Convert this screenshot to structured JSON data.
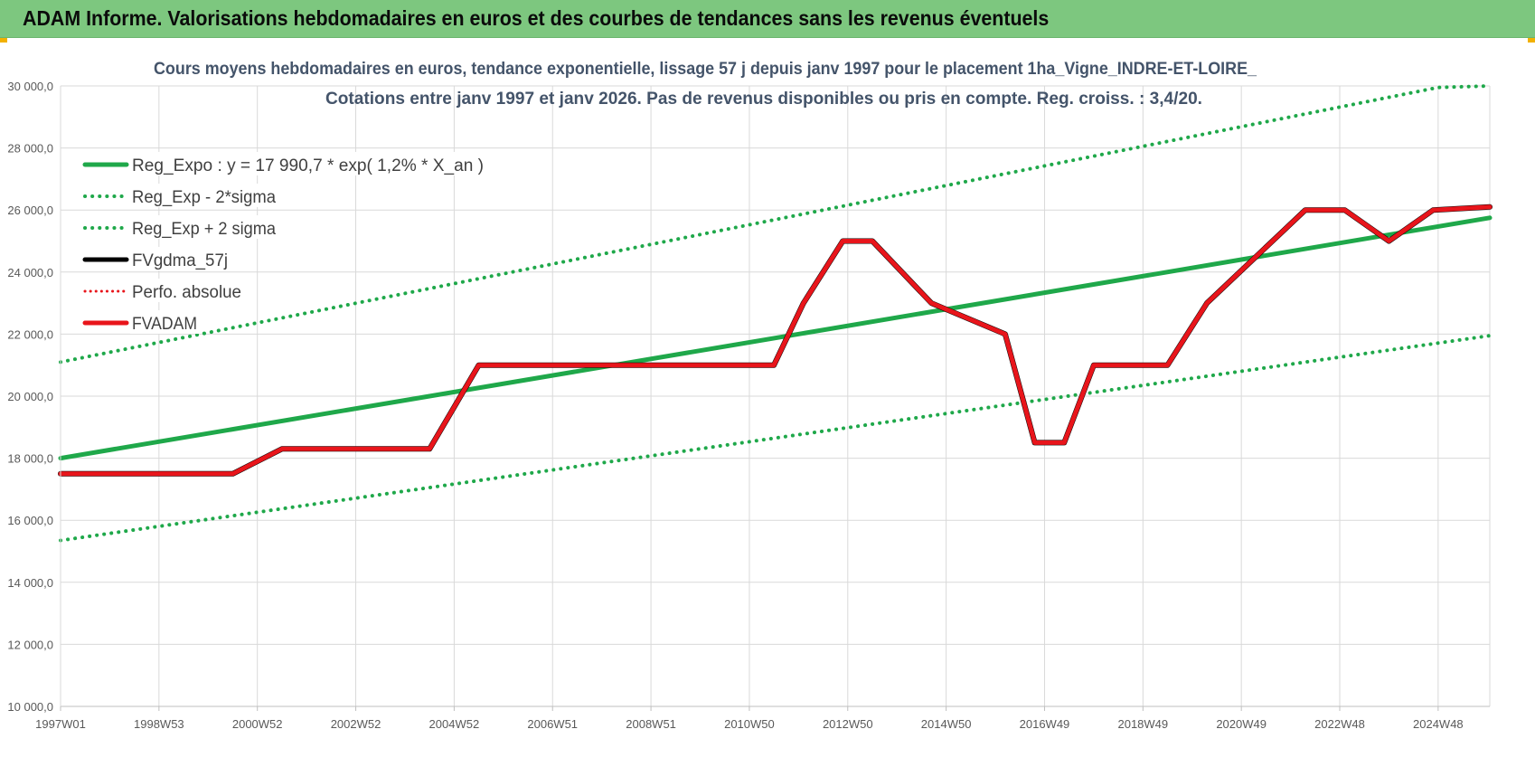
{
  "header": {
    "title": "ADAM Informe. Valorisations hebdomadaires en euros et des courbes de tendances sans les revenus éventuels"
  },
  "chart_data": {
    "type": "line",
    "title_lines": [
      "Cours moyens hebdomadaires en euros, tendance exponentielle, lissage 57 j depuis janv 1997 pour le placement 1ha_Vigne_INDRE-ET-LOIRE_",
      "Cotations entre janv 1997 et janv 2026. Pas de revenus disponibles ou pris en compte. Reg. croiss. : 3,4/20."
    ],
    "xlabel": "",
    "ylabel": "",
    "ylim": [
      10000,
      30000
    ],
    "xlim": [
      1997.0,
      2026.05
    ],
    "y_ticks": [
      "10 000,0",
      "12 000,0",
      "14 000,0",
      "16 000,0",
      "18 000,0",
      "20 000,0",
      "22 000,0",
      "24 000,0",
      "26 000,0",
      "28 000,0",
      "30 000,0"
    ],
    "y_tick_values": [
      10000,
      12000,
      14000,
      16000,
      18000,
      20000,
      22000,
      24000,
      26000,
      28000,
      30000
    ],
    "x_ticks": [
      "1997W01",
      "1998W53",
      "2000W52",
      "2002W52",
      "2004W52",
      "2006W51",
      "2008W51",
      "2010W50",
      "2012W50",
      "2014W50",
      "2016W49",
      "2018W49",
      "2020W49",
      "2022W48",
      "2024W48"
    ],
    "x_tick_values": [
      1997,
      1999,
      2001,
      2003,
      2005,
      2007,
      2009,
      2011,
      2013,
      2015,
      2017,
      2019,
      2021,
      2023,
      2025
    ],
    "grid": true,
    "legend_position": "top-left",
    "series": [
      {
        "name": "Reg_Expo : y = 17 990,7 * exp( 1,2% *  X_an )",
        "color": "#1fa84a",
        "style": "solid",
        "x": [
          1997.0,
          2026.05
        ],
        "y": [
          18000,
          25750
        ]
      },
      {
        "name": "Reg_Exp - 2*sigma",
        "color": "#1fa84a",
        "style": "dotted",
        "x": [
          1997.0,
          2026.05
        ],
        "y": [
          15350,
          21950
        ]
      },
      {
        "name": "Reg_Exp + 2 sigma",
        "color": "#1fa84a",
        "style": "dotted",
        "x": [
          1997.0,
          2025.0,
          2026.05
        ],
        "y": [
          21100,
          29950,
          30000
        ]
      },
      {
        "name": "FVgdma_57j",
        "color": "#000000",
        "style": "solid",
        "x": [
          1997.0,
          2000.5,
          2001.5,
          2004.5,
          2005.5,
          2011.5,
          2012.1,
          2012.9,
          2013.5,
          2014.7,
          2016.2,
          2016.8,
          2017.4,
          2018.0,
          2019.5,
          2020.3,
          2022.3,
          2023.1,
          2024.0,
          2024.9,
          2026.05
        ],
        "y": [
          17500,
          17500,
          18300,
          18300,
          21000,
          21000,
          23000,
          25000,
          25000,
          23000,
          22000,
          18500,
          18500,
          21000,
          21000,
          23000,
          26000,
          26000,
          25000,
          26000,
          26100
        ]
      },
      {
        "name": "Perfo. absolue",
        "color": "#e8151b",
        "style": "dotted",
        "x": [
          1997.0,
          2000.5,
          2001.5,
          2004.5,
          2005.5,
          2011.5,
          2012.1,
          2012.9,
          2013.5,
          2014.7,
          2016.2,
          2016.8,
          2017.4,
          2018.0,
          2019.5,
          2020.3,
          2022.3,
          2023.1,
          2024.0,
          2024.9,
          2026.05
        ],
        "y": [
          17500,
          17500,
          18300,
          18300,
          21000,
          21000,
          23000,
          25000,
          25000,
          23000,
          22000,
          18500,
          18500,
          21000,
          21000,
          23000,
          26000,
          26000,
          25000,
          26000,
          26100
        ]
      },
      {
        "name": "FVADAM",
        "color": "#e8151b",
        "style": "solid",
        "x": [
          1997.0,
          2000.5,
          2001.5,
          2004.5,
          2005.5,
          2011.5,
          2012.1,
          2012.9,
          2013.5,
          2014.7,
          2016.2,
          2016.8,
          2017.4,
          2018.0,
          2019.5,
          2020.3,
          2022.3,
          2023.1,
          2024.0,
          2024.9,
          2026.05
        ],
        "y": [
          17500,
          17500,
          18300,
          18300,
          21000,
          21000,
          23000,
          25000,
          25000,
          23000,
          22000,
          18500,
          18500,
          21000,
          21000,
          23000,
          26000,
          26000,
          25000,
          26000,
          26100
        ]
      }
    ]
  }
}
